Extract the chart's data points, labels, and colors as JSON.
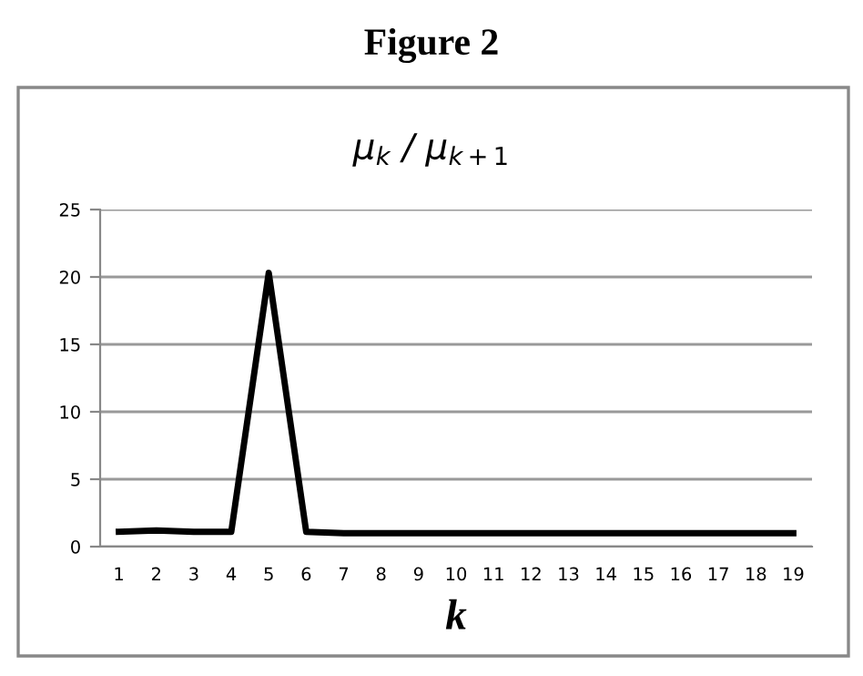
{
  "chart_data": {
    "type": "line",
    "title": "Figure 2",
    "subtitle": "μ$_{k}$ / μ$_{k+1}$",
    "xlabel": "k",
    "categories": [
      "1",
      "2",
      "3",
      "4",
      "5",
      "6",
      "7",
      "8",
      "9",
      "10",
      "11",
      "12",
      "13",
      "14",
      "15",
      "16",
      "17",
      "18",
      "19"
    ],
    "series": [
      {
        "color": "#000000",
        "values": [
          1.1,
          1.2,
          1.1,
          1.1,
          20.3,
          1.1,
          1.0,
          1.0,
          1.0,
          1.0,
          1.0,
          1.0,
          1.0,
          1.0,
          1.0,
          1.0,
          1.0,
          1.0,
          1.0
        ]
      }
    ],
    "ylim": [
      0,
      25
    ],
    "yticks": [
      0,
      5,
      10,
      15,
      20,
      25
    ],
    "grid": "y",
    "marker": "none",
    "line_style": "solid"
  }
}
